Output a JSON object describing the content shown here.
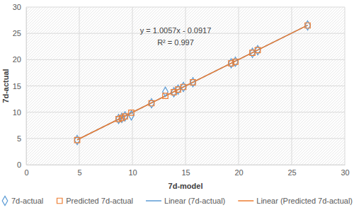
{
  "chart_data": {
    "type": "scatter",
    "x_label": "7d-model",
    "y_label": "7d-actual",
    "annotations": [
      "y = 1.0057x - 0.0917",
      "R² = 0.997"
    ],
    "xlim": [
      0,
      30
    ],
    "xticks": [
      0,
      5,
      10,
      15,
      20,
      25,
      30
    ],
    "ylim": [
      0,
      30
    ],
    "yticks": [
      0,
      5,
      10,
      15,
      20,
      25,
      30
    ],
    "grid": true,
    "legend": "bottom",
    "series": [
      {
        "name": "7d-actual",
        "type": "scatter",
        "color": "#5b9bd5",
        "marker": "diamond",
        "x": [
          4.8,
          8.7,
          9.0,
          9.3,
          9.9,
          11.8,
          13.1,
          13.9,
          14.3,
          14.8,
          15.7,
          19.3,
          19.7,
          21.3,
          21.8,
          26.5
        ],
        "values": [
          4.7,
          8.7,
          8.9,
          9.2,
          9.4,
          11.7,
          13.9,
          13.8,
          14.3,
          14.8,
          15.7,
          19.3,
          19.6,
          21.3,
          21.8,
          26.5
        ]
      },
      {
        "name": "Predicted 7d-actual",
        "type": "scatter",
        "color": "#ed7d31",
        "marker": "square",
        "x": [
          4.8,
          8.7,
          9.0,
          9.3,
          9.9,
          11.8,
          13.1,
          13.9,
          14.3,
          14.8,
          15.7,
          19.3,
          19.7,
          21.3,
          21.8,
          26.5
        ],
        "values": [
          4.7,
          8.7,
          8.9,
          9.2,
          9.9,
          11.7,
          13.1,
          13.8,
          14.3,
          14.8,
          15.7,
          19.3,
          19.6,
          21.3,
          21.8,
          26.5
        ]
      },
      {
        "name": "Linear (7d-actual)",
        "type": "line",
        "color": "#5b9bd5",
        "line_style": "solid",
        "x": [
          4.8,
          26.5
        ],
        "values": [
          4.74,
          26.56
        ]
      },
      {
        "name": "Linear (Predicted 7d-actual)",
        "type": "line",
        "color": "#ed7d31",
        "line_style": "solid",
        "x": [
          4.8,
          26.5
        ],
        "values": [
          4.74,
          26.56
        ]
      }
    ]
  }
}
